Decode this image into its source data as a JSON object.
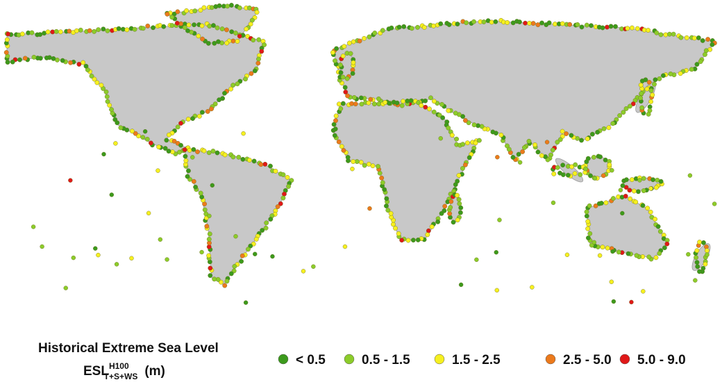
{
  "legend": {
    "title": "Historical Extreme Sea Level",
    "label": {
      "main": "ESL",
      "superscript": "H100",
      "subscript": "T+S+WS",
      "unit": "(m)"
    },
    "items": [
      {
        "label": "< 0.5",
        "color": "#3c9a1c"
      },
      {
        "label": "0.5 - 1.5",
        "color": "#8ccc2a"
      },
      {
        "label": "1.5 - 2.5",
        "color": "#f6f020"
      },
      {
        "label": "2.5 - 5.0",
        "color": "#ec7a1c"
      },
      {
        "label": "5.0 - 9.0",
        "color": "#e01818"
      }
    ]
  }
}
